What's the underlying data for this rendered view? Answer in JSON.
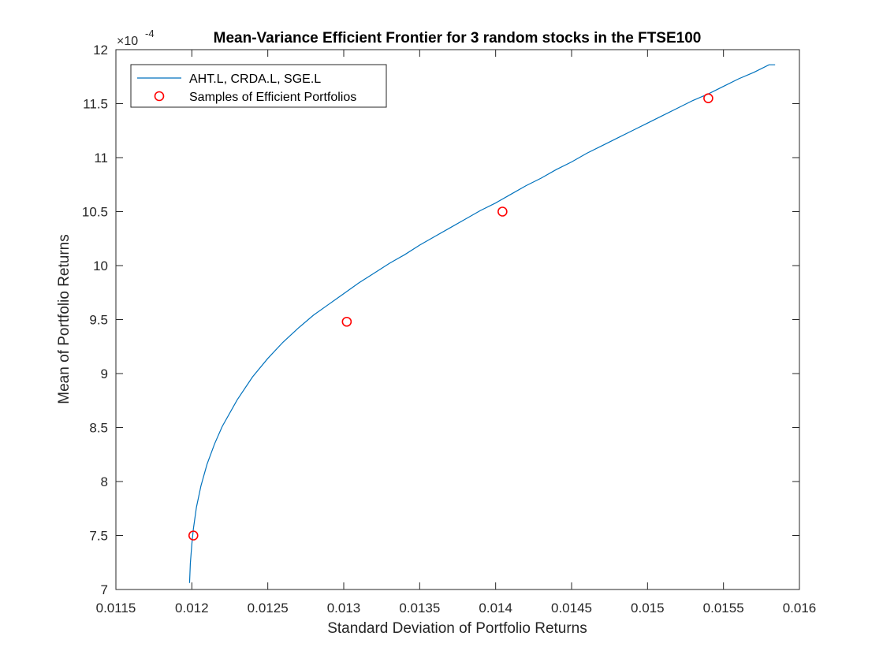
{
  "chart_data": {
    "type": "line",
    "title": "Mean-Variance Efficient Frontier for 3 random stocks in the FTSE100",
    "xlabel": "Standard Deviation of Portfolio Returns",
    "ylabel": "Mean of Portfolio Returns",
    "xlim": [
      0.0115,
      0.016
    ],
    "ylim": [
      7,
      12
    ],
    "y_multiplier": "×10",
    "y_exponent": "-4",
    "xticks": [
      "0.0115",
      "0.012",
      "0.0125",
      "0.013",
      "0.0135",
      "0.014",
      "0.0145",
      "0.015",
      "0.0155",
      "0.016"
    ],
    "yticks": [
      "7",
      "7.5",
      "8",
      "8.5",
      "9",
      "9.5",
      "10",
      "10.5",
      "11",
      "11.5",
      "12"
    ],
    "grid": false,
    "legend_position": "top-left",
    "series": [
      {
        "name": "AHT.L, CRDA.L, SGE.L",
        "color": "#0072BD",
        "style": "line",
        "x": [
          0.011985,
          0.01199,
          0.012,
          0.01201,
          0.01203,
          0.01206,
          0.0121,
          0.01215,
          0.0122,
          0.0123,
          0.0124,
          0.0125,
          0.0126,
          0.0127,
          0.0128,
          0.0129,
          0.013,
          0.0131,
          0.0132,
          0.0133,
          0.0134,
          0.0135,
          0.0136,
          0.0137,
          0.0138,
          0.0139,
          0.014,
          0.0141,
          0.0142,
          0.0143,
          0.0144,
          0.0145,
          0.0146,
          0.0147,
          0.0148,
          0.0149,
          0.015,
          0.0151,
          0.0152,
          0.0153,
          0.0154,
          0.0155,
          0.0156,
          0.0157,
          0.0158,
          0.01584
        ],
        "y": [
          7.06,
          7.24,
          7.42,
          7.56,
          7.76,
          7.96,
          8.16,
          8.35,
          8.51,
          8.76,
          8.97,
          9.14,
          9.29,
          9.42,
          9.54,
          9.64,
          9.74,
          9.84,
          9.93,
          10.02,
          10.1,
          10.19,
          10.27,
          10.35,
          10.43,
          10.51,
          10.58,
          10.66,
          10.74,
          10.81,
          10.89,
          10.96,
          11.04,
          11.11,
          11.18,
          11.25,
          11.32,
          11.39,
          11.46,
          11.53,
          11.59,
          11.66,
          11.73,
          11.79,
          11.86,
          11.86
        ]
      },
      {
        "name": "Samples of Efficient Portfolios",
        "color": "#FF0000",
        "style": "markers",
        "x": [
          0.01201,
          0.01302,
          0.014045,
          0.0154
        ],
        "y": [
          7.5,
          9.48,
          10.5,
          11.55
        ]
      }
    ]
  }
}
